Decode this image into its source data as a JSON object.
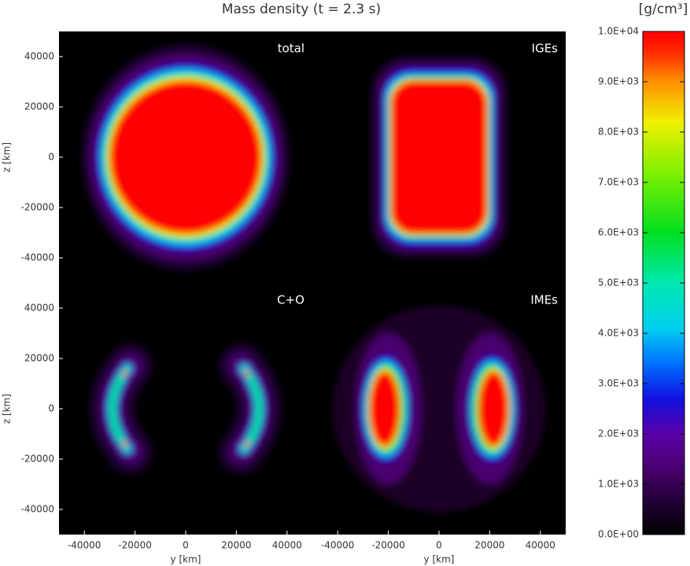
{
  "title": "Mass density (t = 2.3 s)",
  "colorbar": {
    "label": "[g/cm³]",
    "lim": [
      0,
      10000
    ],
    "ticks": [
      {
        "value": 0,
        "label": "0.0E+00"
      },
      {
        "value": 1000,
        "label": "1.0E+03"
      },
      {
        "value": 2000,
        "label": "2.0E+03"
      },
      {
        "value": 3000,
        "label": "3.0E+03"
      },
      {
        "value": 4000,
        "label": "4.0E+03"
      },
      {
        "value": 5000,
        "label": "5.0E+03"
      },
      {
        "value": 6000,
        "label": "6.0E+03"
      },
      {
        "value": 7000,
        "label": "7.0E+03"
      },
      {
        "value": 8000,
        "label": "8.0E+03"
      },
      {
        "value": 9000,
        "label": "9.0E+03"
      },
      {
        "value": 10000,
        "label": "1.0E+04"
      }
    ]
  },
  "chart_data": [
    {
      "type": "heatmap",
      "label": "total",
      "xlim": [
        -50000,
        50000
      ],
      "ylim": [
        -50000,
        50000
      ],
      "yticks": [
        -40000,
        -20000,
        0,
        20000,
        40000
      ],
      "ylabel": "z [km]"
    },
    {
      "type": "heatmap",
      "label": "IGEs",
      "xlim": [
        -50000,
        50000
      ],
      "ylim": [
        -50000,
        50000
      ]
    },
    {
      "type": "heatmap",
      "label": "C+O",
      "xlim": [
        -50000,
        50000
      ],
      "ylim": [
        -50000,
        50000
      ],
      "xticks": [
        -40000,
        -20000,
        0,
        20000,
        40000
      ],
      "yticks": [
        -40000,
        -20000,
        0,
        20000,
        40000
      ],
      "xlabel": "y [km]",
      "ylabel": "z [km]"
    },
    {
      "type": "heatmap",
      "label": "IMEs",
      "xlim": [
        -50000,
        50000
      ],
      "ylim": [
        -50000,
        50000
      ],
      "xticks": [
        -40000,
        -20000,
        0,
        20000,
        40000
      ],
      "xlabel": "y [km]"
    }
  ]
}
